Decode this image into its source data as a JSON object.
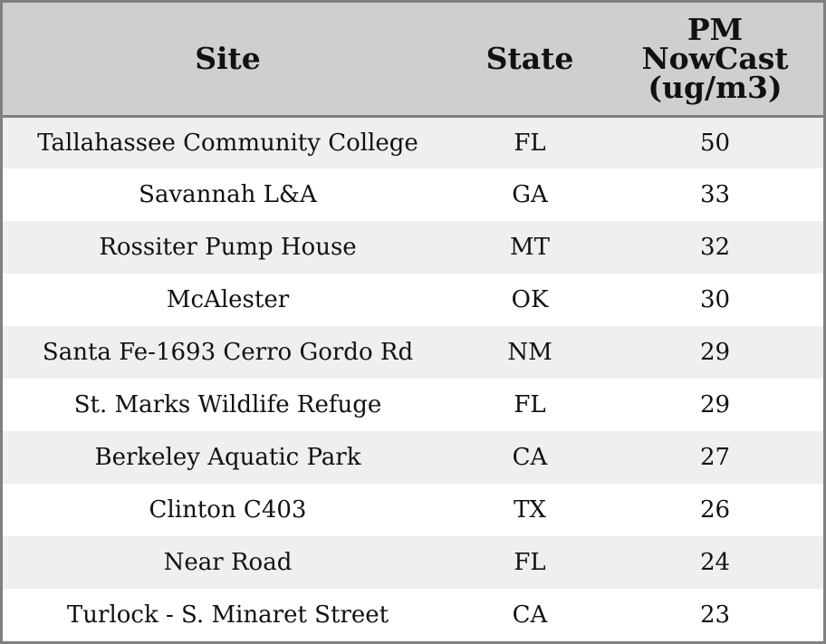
{
  "chart_data": {
    "type": "table",
    "columns": [
      "Site",
      "State",
      "PM NowCast (ug/m3)"
    ],
    "header_lines": {
      "site": "Site",
      "state": "State",
      "pm": [
        "PM",
        "NowCast",
        "(ug/m3)"
      ]
    },
    "rows": [
      {
        "site": "Tallahassee Community College",
        "state": "FL",
        "pm": "50"
      },
      {
        "site": "Savannah L&A",
        "state": "GA",
        "pm": "33"
      },
      {
        "site": "Rossiter Pump House",
        "state": "MT",
        "pm": "32"
      },
      {
        "site": "McAlester",
        "state": "OK",
        "pm": "30"
      },
      {
        "site": "Santa Fe-1693 Cerro Gordo Rd",
        "state": "NM",
        "pm": "29"
      },
      {
        "site": "St. Marks Wildlife Refuge",
        "state": "FL",
        "pm": "29"
      },
      {
        "site": "Berkeley Aquatic Park",
        "state": "CA",
        "pm": "27"
      },
      {
        "site": "Clinton C403",
        "state": "TX",
        "pm": "26"
      },
      {
        "site": "Near Road",
        "state": "FL",
        "pm": "24"
      },
      {
        "site": "Turlock - S. Minaret Street",
        "state": "CA",
        "pm": "23"
      }
    ],
    "colors": {
      "header_bg": "#cfcfcf",
      "row_alt_bg": "#efefef",
      "row_bg": "#ffffff",
      "border": "#808080"
    }
  }
}
